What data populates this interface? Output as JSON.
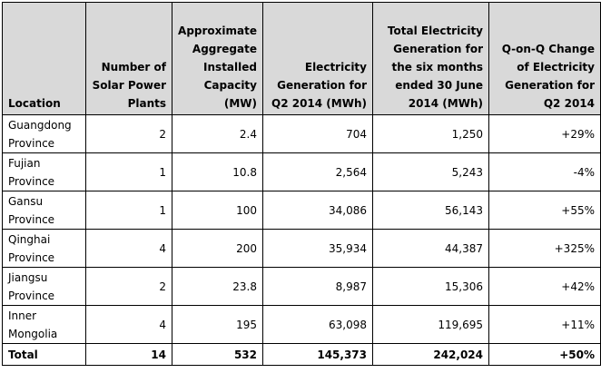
{
  "table": {
    "headers": [
      "Location",
      "Number of Solar Power Plants",
      "Approximate Aggregate Installed Capacity (MW)",
      "Electricity Generation for Q2 2014 (MWh)",
      "Total Electricity Generation for the six months ended 30 June 2014 (MWh)",
      "Q-on-Q Change of Electricity Generation for Q2 2014"
    ],
    "rows": [
      [
        "Guangdong Province",
        "2",
        "2.4",
        "704",
        "1,250",
        "+29%"
      ],
      [
        "Fujian Province",
        "1",
        "10.8",
        "2,564",
        "5,243",
        "-4%"
      ],
      [
        "Gansu Province",
        "1",
        "100",
        "34,086",
        "56,143",
        "+55%"
      ],
      [
        "Qinghai Province",
        "4",
        "200",
        "35,934",
        "44,387",
        "+325%"
      ],
      [
        "Jiangsu Province",
        "2",
        "23.8",
        "8,987",
        "15,306",
        "+42%"
      ],
      [
        "Inner Mongolia",
        "4",
        "195",
        "63,098",
        "119,695",
        "+11%"
      ]
    ],
    "total": [
      "Total",
      "14",
      "532",
      "145,373",
      "242,024",
      "+50%"
    ]
  }
}
